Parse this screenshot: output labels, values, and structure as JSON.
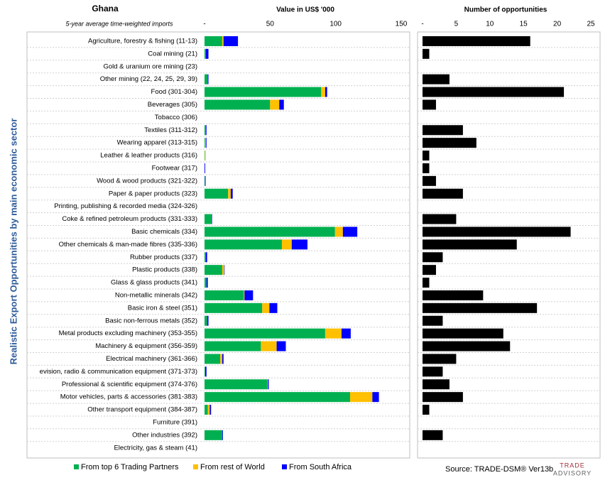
{
  "chart_data": [
    {
      "type": "bar",
      "orientation": "horizontal",
      "stacked": true,
      "title": "Ghana",
      "subtitle": "5-year average time-weighted imports",
      "axis_title": "Value in US$ '000",
      "ylabel": "Realistic Export Opportunities by main economic sector",
      "categories": [
        "Agriculture, forestry & fishing (11-13)",
        "Coal mining (21)",
        "Gold & uranium ore mining (23)",
        "Other mining (22, 24, 25, 29, 39)",
        "Food (301-304)",
        "Beverages (305)",
        "Tobacco (306)",
        "Textiles (311-312)",
        "Wearing apparel (313-315)",
        "Leather & leather products (316)",
        "Footwear (317)",
        "Wood & wood products (321-322)",
        "Paper & paper products (323)",
        "Printing, publishing & recorded media (324-326)",
        "Coke & refined petroleum products (331-333)",
        "Basic chemicals (334)",
        "Other chemicals & man-made fibres (335-336)",
        "Rubber products (337)",
        "Plastic products (338)",
        "Glass & glass products (341)",
        "Non-metallic minerals (342)",
        "Basic iron & steel (351)",
        "Basic non-ferrous metals (352)",
        "Metal products excluding machinery (353-355)",
        "Machinery & equipment (356-359)",
        "Electrical machinery (361-366)",
        "evision, radio & communication equipment (371-373)",
        "Professional & scientific equipment (374-376)",
        "Motor vehicles, parts & accessories (381-383)",
        "Other transport equipment (384-387)",
        "Furniture (391)",
        "Other industries (392)",
        "Electricity, gas & steam (41)"
      ],
      "series": [
        {
          "name": "From top 6 Trading Partners",
          "color": "#00b050",
          "values": [
            13.5,
            1,
            0,
            2.5,
            89,
            50,
            0,
            1,
            0.5,
            0.3,
            0,
            0.3,
            18,
            0,
            5.5,
            99.5,
            59,
            1,
            13.5,
            1.5,
            30,
            44,
            2,
            92,
            43,
            12,
            0.5,
            48,
            111,
            2.5,
            0,
            13.5,
            0
          ]
        },
        {
          "name": "From rest of World",
          "color": "#ffc000",
          "values": [
            1,
            0,
            0,
            0,
            3,
            7,
            0,
            0,
            0.5,
            0.5,
            0,
            0,
            2,
            0,
            0,
            6,
            7.5,
            0,
            1.5,
            0,
            0.5,
            5.5,
            0,
            12.5,
            12,
            1.5,
            0,
            0.3,
            17,
            1.5,
            0,
            0,
            0
          ]
        },
        {
          "name": "From South Africa",
          "color": "#0000ff",
          "values": [
            11,
            2,
            0,
            0.5,
            1.5,
            3.5,
            0,
            0.5,
            0.5,
            0,
            0.5,
            0.5,
            1.5,
            0,
            0.3,
            11,
            12,
            1,
            0.3,
            1,
            6.5,
            6,
            1,
            7,
            7,
            1,
            1,
            0.7,
            5,
            1,
            0,
            0.5,
            0
          ]
        }
      ],
      "xlim": [
        0,
        150
      ],
      "xticks": [
        {
          "value": 0,
          "label": "-"
        },
        50,
        100,
        150
      ]
    },
    {
      "type": "bar",
      "orientation": "horizontal",
      "axis_title": "Number of opportunities",
      "color": "#000000",
      "values": [
        16,
        1,
        0,
        4,
        21,
        2,
        0,
        6,
        8,
        1,
        1,
        2,
        6,
        0,
        5,
        22,
        14,
        3,
        2,
        1,
        9,
        17,
        3,
        12,
        13,
        5,
        3,
        4,
        6,
        1,
        0,
        3,
        0
      ],
      "xlim": [
        0,
        25
      ],
      "xticks": [
        {
          "value": 0,
          "label": "-"
        },
        5,
        10,
        15,
        20,
        25
      ]
    }
  ],
  "source": "Source: TRADE-DSM®  Ver13b",
  "logo": {
    "top": "TRADE",
    "bottom": "ADVISORY"
  }
}
